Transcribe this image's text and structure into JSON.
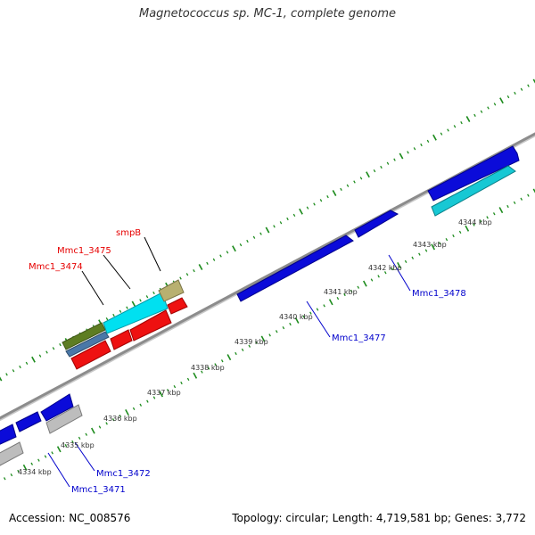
{
  "title": "Magnetococcus sp. MC-1, complete genome",
  "footer": {
    "accession": "Accession: NC_008576",
    "summary": "Topology: circular; Length: 4,719,581 bp; Genes: 3,772"
  },
  "colors": {
    "backbone": "#8c8c8c",
    "tick": "#1e8c1e",
    "forward_label": "#e60000",
    "reverse_label": "#0000cc",
    "kbp_label": "#333333"
  },
  "kbp_labels": [
    "4334 kbp",
    "4335 kbp",
    "4336 kbp",
    "4337 kbp",
    "4338 kbp",
    "4339 kbp",
    "4340 kbp",
    "4341 kbp",
    "4342 kbp",
    "4343 kbp",
    "4344 kbp"
  ],
  "gene_labels": {
    "smpB": "smpB",
    "mmc1_3475": "Mmc1_3475",
    "mmc1_3474": "Mmc1_3474",
    "mmc1_3478": "Mmc1_3478",
    "mmc1_3477": "Mmc1_3477",
    "mmc1_3472": "Mmc1_3472",
    "mmc1_3471": "Mmc1_3471"
  }
}
